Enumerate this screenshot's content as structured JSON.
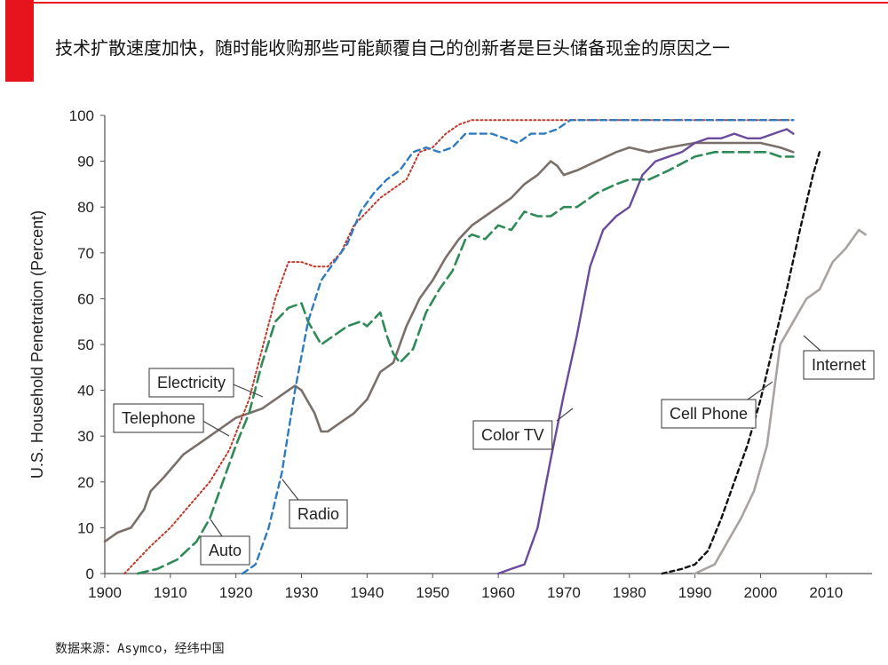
{
  "header": {
    "title": "技术扩散速度加快，随时能收购那些可能颠覆自己的创新者是巨头储备现金的原因之一",
    "accent_color": "#e8141d"
  },
  "footer": {
    "source": "数据来源：Asymco，经纬中国"
  },
  "chart_data": {
    "type": "line",
    "title": "",
    "xlabel": "",
    "ylabel": "U.S. Household Penetration (Percent)",
    "xlim": [
      1900,
      2017
    ],
    "ylim": [
      0,
      100
    ],
    "x_ticks": [
      1900,
      1910,
      1920,
      1930,
      1940,
      1950,
      1960,
      1970,
      1980,
      1990,
      2000,
      2010
    ],
    "y_ticks": [
      0,
      10,
      20,
      30,
      40,
      50,
      60,
      70,
      80,
      90,
      100
    ],
    "grid": false,
    "legend": "none (series labeled inline with callouts)",
    "series": [
      {
        "name": "Electricity",
        "color": "#7a6f6a",
        "style": "solid",
        "points": [
          [
            1900,
            7
          ],
          [
            1902,
            9
          ],
          [
            1904,
            10
          ],
          [
            1906,
            14
          ],
          [
            1907,
            18
          ],
          [
            1909,
            21
          ],
          [
            1912,
            26
          ],
          [
            1915,
            29
          ],
          [
            1918,
            32
          ],
          [
            1920,
            34
          ],
          [
            1922,
            35
          ],
          [
            1924,
            36
          ],
          [
            1926,
            38
          ],
          [
            1928,
            40
          ],
          [
            1929,
            41
          ],
          [
            1930,
            40
          ],
          [
            1932,
            35
          ],
          [
            1933,
            31
          ],
          [
            1934,
            31
          ],
          [
            1936,
            33
          ],
          [
            1938,
            35
          ],
          [
            1940,
            38
          ],
          [
            1942,
            44
          ],
          [
            1944,
            46
          ],
          [
            1946,
            54
          ],
          [
            1948,
            60
          ],
          [
            1950,
            64
          ],
          [
            1952,
            69
          ],
          [
            1954,
            73
          ],
          [
            1956,
            76
          ],
          [
            1958,
            78
          ],
          [
            1960,
            80
          ],
          [
            1962,
            82
          ],
          [
            1964,
            85
          ],
          [
            1966,
            87
          ],
          [
            1968,
            90
          ],
          [
            1969,
            89
          ],
          [
            1970,
            87
          ],
          [
            1972,
            88
          ],
          [
            1975,
            90
          ],
          [
            1978,
            92
          ],
          [
            1980,
            93
          ],
          [
            1983,
            92
          ],
          [
            1986,
            93
          ],
          [
            1990,
            94
          ],
          [
            1995,
            94
          ],
          [
            2000,
            94
          ],
          [
            2003,
            93
          ],
          [
            2005,
            92
          ]
        ]
      },
      {
        "name": "Telephone",
        "color": "#c0392b",
        "style": "dotted",
        "points": [
          [
            1903,
            0
          ],
          [
            1905,
            3
          ],
          [
            1907,
            6
          ],
          [
            1910,
            10
          ],
          [
            1913,
            15
          ],
          [
            1916,
            20
          ],
          [
            1919,
            27
          ],
          [
            1922,
            38
          ],
          [
            1924,
            49
          ],
          [
            1926,
            60
          ],
          [
            1928,
            68
          ],
          [
            1930,
            68
          ],
          [
            1932,
            67
          ],
          [
            1934,
            67
          ],
          [
            1936,
            70
          ],
          [
            1938,
            76
          ],
          [
            1940,
            79
          ],
          [
            1942,
            82
          ],
          [
            1944,
            84
          ],
          [
            1946,
            86
          ],
          [
            1948,
            92
          ],
          [
            1950,
            93
          ],
          [
            1952,
            96
          ],
          [
            1954,
            98
          ],
          [
            1956,
            99
          ],
          [
            1970,
            99
          ],
          [
            1990,
            99
          ],
          [
            2005,
            99
          ]
        ]
      },
      {
        "name": "Auto",
        "color": "#2e8b57",
        "style": "dashed",
        "points": [
          [
            1905,
            0
          ],
          [
            1908,
            1
          ],
          [
            1911,
            3
          ],
          [
            1914,
            7
          ],
          [
            1916,
            12
          ],
          [
            1918,
            20
          ],
          [
            1920,
            28
          ],
          [
            1922,
            35
          ],
          [
            1924,
            46
          ],
          [
            1926,
            55
          ],
          [
            1928,
            58
          ],
          [
            1930,
            59
          ],
          [
            1931,
            55
          ],
          [
            1933,
            50
          ],
          [
            1935,
            52
          ],
          [
            1937,
            54
          ],
          [
            1939,
            55
          ],
          [
            1940,
            54
          ],
          [
            1942,
            57
          ],
          [
            1943,
            52
          ],
          [
            1944,
            48
          ],
          [
            1945,
            46
          ],
          [
            1947,
            49
          ],
          [
            1949,
            57
          ],
          [
            1951,
            62
          ],
          [
            1953,
            66
          ],
          [
            1955,
            73
          ],
          [
            1956,
            74
          ],
          [
            1958,
            73
          ],
          [
            1960,
            76
          ],
          [
            1962,
            75
          ],
          [
            1964,
            79
          ],
          [
            1966,
            78
          ],
          [
            1968,
            78
          ],
          [
            1970,
            80
          ],
          [
            1972,
            80
          ],
          [
            1975,
            83
          ],
          [
            1978,
            85
          ],
          [
            1980,
            86
          ],
          [
            1983,
            86
          ],
          [
            1986,
            88
          ],
          [
            1990,
            91
          ],
          [
            1993,
            92
          ],
          [
            1996,
            92
          ],
          [
            1999,
            92
          ],
          [
            2001,
            92
          ],
          [
            2003,
            91
          ],
          [
            2005,
            91
          ]
        ]
      },
      {
        "name": "Radio",
        "color": "#2e7bbf",
        "style": "dashed",
        "points": [
          [
            1921,
            0
          ],
          [
            1923,
            2
          ],
          [
            1925,
            10
          ],
          [
            1927,
            22
          ],
          [
            1929,
            40
          ],
          [
            1931,
            55
          ],
          [
            1933,
            64
          ],
          [
            1935,
            68
          ],
          [
            1937,
            72
          ],
          [
            1939,
            79
          ],
          [
            1941,
            83
          ],
          [
            1943,
            86
          ],
          [
            1945,
            88
          ],
          [
            1947,
            92
          ],
          [
            1949,
            93
          ],
          [
            1951,
            92
          ],
          [
            1953,
            93
          ],
          [
            1955,
            96
          ],
          [
            1957,
            96
          ],
          [
            1959,
            96
          ],
          [
            1961,
            95
          ],
          [
            1963,
            94
          ],
          [
            1965,
            96
          ],
          [
            1967,
            96
          ],
          [
            1969,
            97
          ],
          [
            1971,
            99
          ],
          [
            1980,
            99
          ],
          [
            1990,
            99
          ],
          [
            2005,
            99
          ]
        ]
      },
      {
        "name": "Color TV",
        "color": "#6a4a9c",
        "style": "solid",
        "points": [
          [
            1960,
            0
          ],
          [
            1962,
            1
          ],
          [
            1964,
            2
          ],
          [
            1966,
            10
          ],
          [
            1968,
            25
          ],
          [
            1970,
            39
          ],
          [
            1972,
            52
          ],
          [
            1974,
            67
          ],
          [
            1976,
            75
          ],
          [
            1978,
            78
          ],
          [
            1980,
            80
          ],
          [
            1982,
            87
          ],
          [
            1984,
            90
          ],
          [
            1986,
            91
          ],
          [
            1988,
            92
          ],
          [
            1990,
            94
          ],
          [
            1992,
            95
          ],
          [
            1994,
            95
          ],
          [
            1996,
            96
          ],
          [
            1998,
            95
          ],
          [
            2000,
            95
          ],
          [
            2002,
            96
          ],
          [
            2004,
            97
          ],
          [
            2005,
            96
          ]
        ]
      },
      {
        "name": "Cell Phone",
        "color": "#111111",
        "style": "dashed",
        "points": [
          [
            1985,
            0
          ],
          [
            1988,
            1
          ],
          [
            1990,
            2
          ],
          [
            1992,
            5
          ],
          [
            1994,
            12
          ],
          [
            1996,
            20
          ],
          [
            1998,
            28
          ],
          [
            2000,
            38
          ],
          [
            2002,
            50
          ],
          [
            2004,
            62
          ],
          [
            2006,
            75
          ],
          [
            2008,
            87
          ],
          [
            2009,
            92
          ]
        ]
      },
      {
        "name": "Internet",
        "color": "#a8a3a0",
        "style": "solid",
        "points": [
          [
            1990,
            0
          ],
          [
            1993,
            2
          ],
          [
            1995,
            7
          ],
          [
            1997,
            12
          ],
          [
            1999,
            18
          ],
          [
            2001,
            28
          ],
          [
            2003,
            50
          ],
          [
            2005,
            55
          ],
          [
            2007,
            60
          ],
          [
            2009,
            62
          ],
          [
            2011,
            68
          ],
          [
            2013,
            71
          ],
          [
            2015,
            75
          ],
          [
            2016,
            74
          ]
        ]
      }
    ],
    "annotations": [
      {
        "text": "Electricity",
        "series": "Electricity"
      },
      {
        "text": "Telephone",
        "series": "Telephone"
      },
      {
        "text": "Auto",
        "series": "Auto"
      },
      {
        "text": "Radio",
        "series": "Radio"
      },
      {
        "text": "Color TV",
        "series": "Color TV"
      },
      {
        "text": "Cell Phone",
        "series": "Cell Phone"
      },
      {
        "text": "Internet",
        "series": "Internet"
      }
    ]
  }
}
